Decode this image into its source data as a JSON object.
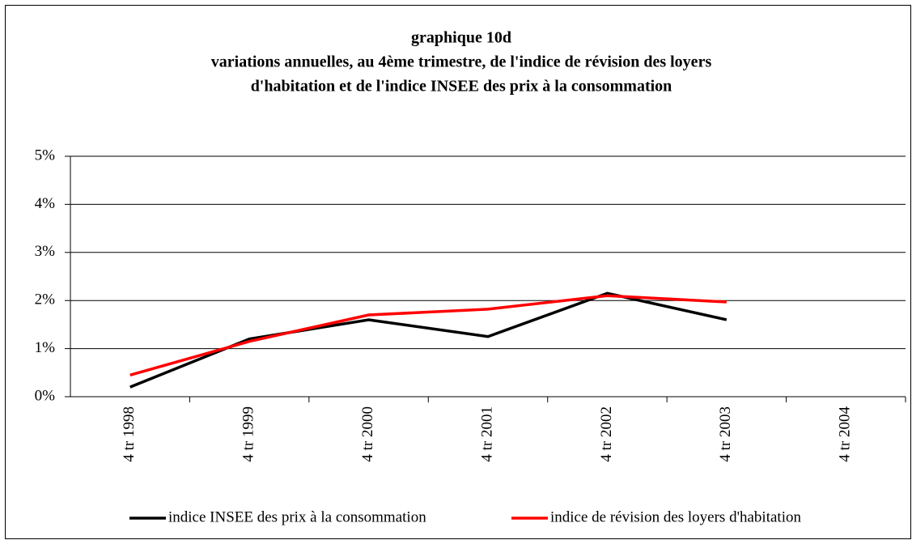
{
  "chart_data": {
    "type": "line",
    "title": [
      "graphique 10d",
      "variations annuelles, au 4ème trimestre, de l'indice de révision des loyers",
      "d'habitation et de l'indice INSEE des prix à la consommation"
    ],
    "categories": [
      "4 tr 1998",
      "4 tr 1999",
      "4 tr 2000",
      "4 tr 2001",
      "4 tr 2002",
      "4 tr 2003",
      "4 tr 2004"
    ],
    "series": [
      {
        "name": "indice INSEE des prix à la consommation",
        "color": "#000000",
        "values": [
          0.2,
          1.2,
          1.6,
          1.25,
          2.15,
          1.6,
          null
        ]
      },
      {
        "name": "indice de révision des loyers d'habitation",
        "color": "#ff0000",
        "values": [
          0.45,
          1.15,
          1.7,
          1.82,
          2.1,
          1.97,
          null
        ]
      }
    ],
    "ylim": [
      0,
      5
    ],
    "yticks": [
      {
        "value": 0,
        "label": "0%"
      },
      {
        "value": 1,
        "label": "1%"
      },
      {
        "value": 2,
        "label": "2%"
      },
      {
        "value": 3,
        "label": "3%"
      },
      {
        "value": 4,
        "label": "4%"
      },
      {
        "value": 5,
        "label": "5%"
      }
    ],
    "grid": true,
    "legend": "bottom"
  }
}
